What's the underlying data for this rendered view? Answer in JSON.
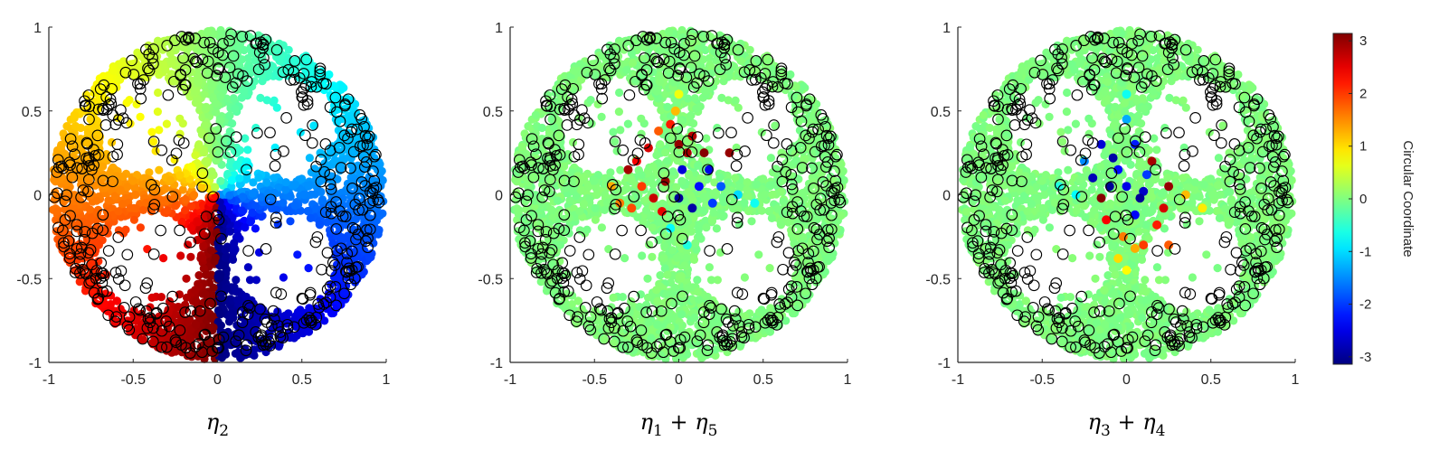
{
  "chart_data": [
    {
      "type": "scatter",
      "xlabel": "η2",
      "xlabel_parts": [
        {
          "t": "η",
          "sub": "2"
        }
      ],
      "xlim": [
        -1,
        1
      ],
      "ylim": [
        -1,
        1
      ],
      "xticks": [
        "-1",
        "-0.5",
        "0",
        "0.5",
        "1"
      ],
      "yticks": [
        "1",
        "0.5",
        "0",
        "-0.5",
        "-1"
      ],
      "grid": false,
      "coloring": "angle",
      "hotspots": []
    },
    {
      "type": "scatter",
      "xlabel": "η1 + η5",
      "xlabel_parts": [
        {
          "t": "η",
          "sub": "1"
        },
        {
          "t": " + "
        },
        {
          "t": "η",
          "sub": "5"
        }
      ],
      "xlim": [
        -1,
        1
      ],
      "ylim": [
        -1,
        1
      ],
      "xticks": [
        "-1",
        "-0.5",
        "0",
        "0.5",
        "1"
      ],
      "yticks": [
        "1",
        "0.5",
        "0",
        "-0.5",
        "-1"
      ],
      "grid": false,
      "coloring": "center",
      "hotspots": [
        {
          "x": -0.12,
          "y": 0.38,
          "v": 1.8
        },
        {
          "x": -0.05,
          "y": 0.42,
          "v": 2.2
        },
        {
          "x": -0.18,
          "y": 0.28,
          "v": 2.6
        },
        {
          "x": 0.0,
          "y": 0.3,
          "v": 3.0
        },
        {
          "x": 0.08,
          "y": 0.35,
          "v": 2.8
        },
        {
          "x": 0.15,
          "y": 0.25,
          "v": 3.1
        },
        {
          "x": -0.3,
          "y": 0.15,
          "v": 2.9
        },
        {
          "x": -0.22,
          "y": 0.05,
          "v": 2.0
        },
        {
          "x": -0.35,
          "y": -0.05,
          "v": 1.6
        },
        {
          "x": -0.15,
          "y": -0.02,
          "v": 2.7
        },
        {
          "x": -0.08,
          "y": 0.08,
          "v": 3.0
        },
        {
          "x": 0.02,
          "y": 0.15,
          "v": -2.6
        },
        {
          "x": 0.12,
          "y": 0.05,
          "v": -2.3
        },
        {
          "x": 0.2,
          "y": -0.05,
          "v": -2.0
        },
        {
          "x": 0.08,
          "y": -0.08,
          "v": -2.9
        },
        {
          "x": 0.18,
          "y": 0.15,
          "v": -2.5
        },
        {
          "x": 0.25,
          "y": 0.05,
          "v": -1.8
        },
        {
          "x": 0.35,
          "y": 0.0,
          "v": -1.0
        },
        {
          "x": -0.05,
          "y": -0.2,
          "v": -0.8
        },
        {
          "x": 0.05,
          "y": -0.3,
          "v": -0.6
        },
        {
          "x": -0.02,
          "y": 0.5,
          "v": 1.2
        },
        {
          "x": 0.0,
          "y": 0.6,
          "v": 0.7
        },
        {
          "x": -0.25,
          "y": 0.2,
          "v": 2.4
        },
        {
          "x": 0.3,
          "y": 0.25,
          "v": 3.0
        },
        {
          "x": -0.4,
          "y": 0.05,
          "v": 1.3
        },
        {
          "x": 0.45,
          "y": -0.05,
          "v": -0.7
        },
        {
          "x": -0.1,
          "y": -0.1,
          "v": 2.5
        },
        {
          "x": 0.0,
          "y": -0.02,
          "v": -3.0
        },
        {
          "x": 0.05,
          "y": 0.25,
          "v": 2.9
        },
        {
          "x": -0.28,
          "y": -0.08,
          "v": 1.9
        }
      ]
    },
    {
      "type": "scatter",
      "xlabel": "η3 + η4",
      "xlabel_parts": [
        {
          "t": "η",
          "sub": "3"
        },
        {
          "t": " + "
        },
        {
          "t": "η",
          "sub": "4"
        }
      ],
      "xlim": [
        -1,
        1
      ],
      "ylim": [
        -1,
        1
      ],
      "xticks": [
        "-1",
        "-0.5",
        "0",
        "0.5",
        "1"
      ],
      "yticks": [
        "1",
        "0.5",
        "0",
        "-0.5",
        "-1"
      ],
      "grid": false,
      "coloring": "center",
      "hotspots": [
        {
          "x": -0.15,
          "y": 0.3,
          "v": -2.6
        },
        {
          "x": -0.08,
          "y": 0.22,
          "v": -2.9
        },
        {
          "x": 0.0,
          "y": 0.45,
          "v": -1.3
        },
        {
          "x": 0.05,
          "y": 0.3,
          "v": -2.2
        },
        {
          "x": -0.2,
          "y": 0.1,
          "v": -2.8
        },
        {
          "x": -0.1,
          "y": 0.05,
          "v": -3.0
        },
        {
          "x": 0.0,
          "y": 0.05,
          "v": -2.5
        },
        {
          "x": 0.1,
          "y": 0.02,
          "v": -2.7
        },
        {
          "x": 0.12,
          "y": 0.12,
          "v": -2.0
        },
        {
          "x": -0.15,
          "y": -0.02,
          "v": 3.1
        },
        {
          "x": 0.15,
          "y": 0.2,
          "v": 2.9
        },
        {
          "x": 0.25,
          "y": 0.05,
          "v": 3.0
        },
        {
          "x": 0.22,
          "y": -0.08,
          "v": 2.6
        },
        {
          "x": 0.05,
          "y": -0.12,
          "v": -2.4
        },
        {
          "x": -0.02,
          "y": -0.25,
          "v": 1.6
        },
        {
          "x": 0.05,
          "y": -0.32,
          "v": 1.3
        },
        {
          "x": 0.1,
          "y": -0.3,
          "v": 2.0
        },
        {
          "x": -0.05,
          "y": -0.38,
          "v": 1.0
        },
        {
          "x": 0.0,
          "y": -0.45,
          "v": 0.8
        },
        {
          "x": 0.35,
          "y": 0.0,
          "v": 1.2
        },
        {
          "x": 0.45,
          "y": -0.08,
          "v": 0.9
        },
        {
          "x": -0.3,
          "y": 0.0,
          "v": -0.8
        },
        {
          "x": -0.4,
          "y": 0.05,
          "v": -0.6
        },
        {
          "x": 0.0,
          "y": 0.6,
          "v": -0.7
        },
        {
          "x": -0.05,
          "y": 0.15,
          "v": -2.3
        },
        {
          "x": 0.08,
          "y": -0.02,
          "v": -3.0
        },
        {
          "x": 0.25,
          "y": -0.3,
          "v": 1.8
        },
        {
          "x": -0.12,
          "y": -0.15,
          "v": 2.4
        },
        {
          "x": 0.18,
          "y": -0.18,
          "v": 2.2
        },
        {
          "x": -0.25,
          "y": 0.2,
          "v": -1.5
        }
      ]
    }
  ],
  "colorbar": {
    "label": "Circular Coordinate",
    "range": [
      -3.14,
      3.14
    ],
    "ticks": [
      "3",
      "2",
      "1",
      "0",
      "-1",
      "-2",
      "-3"
    ],
    "colormap": "jet"
  }
}
